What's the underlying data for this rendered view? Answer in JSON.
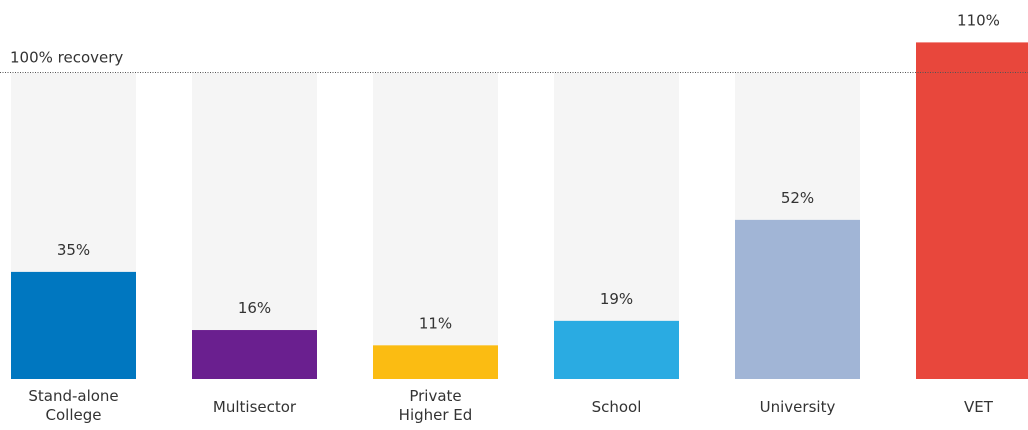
{
  "chart_data": {
    "type": "bar",
    "title": "",
    "xlabel": "",
    "ylabel": "",
    "ylim": [
      0,
      110
    ],
    "grid": false,
    "categories": [
      [
        "Stand-alone",
        "College"
      ],
      [
        "Multisector"
      ],
      [
        "Private",
        "Higher Ed"
      ],
      [
        "School"
      ],
      [
        "University"
      ],
      [
        "VET"
      ]
    ],
    "values": [
      35,
      16,
      11,
      19,
      52,
      110
    ],
    "value_labels": [
      "35%",
      "16%",
      "11%",
      "19%",
      "52%",
      "110%"
    ],
    "colors": [
      "#0077c0",
      "#6a1f8f",
      "#fbbc12",
      "#2aabe2",
      "#a1b5d6",
      "#e8473c"
    ],
    "background_bar_color": "#f5f5f5",
    "background_value": 100,
    "reference_line": {
      "value": 100,
      "label": "100% recovery"
    }
  }
}
